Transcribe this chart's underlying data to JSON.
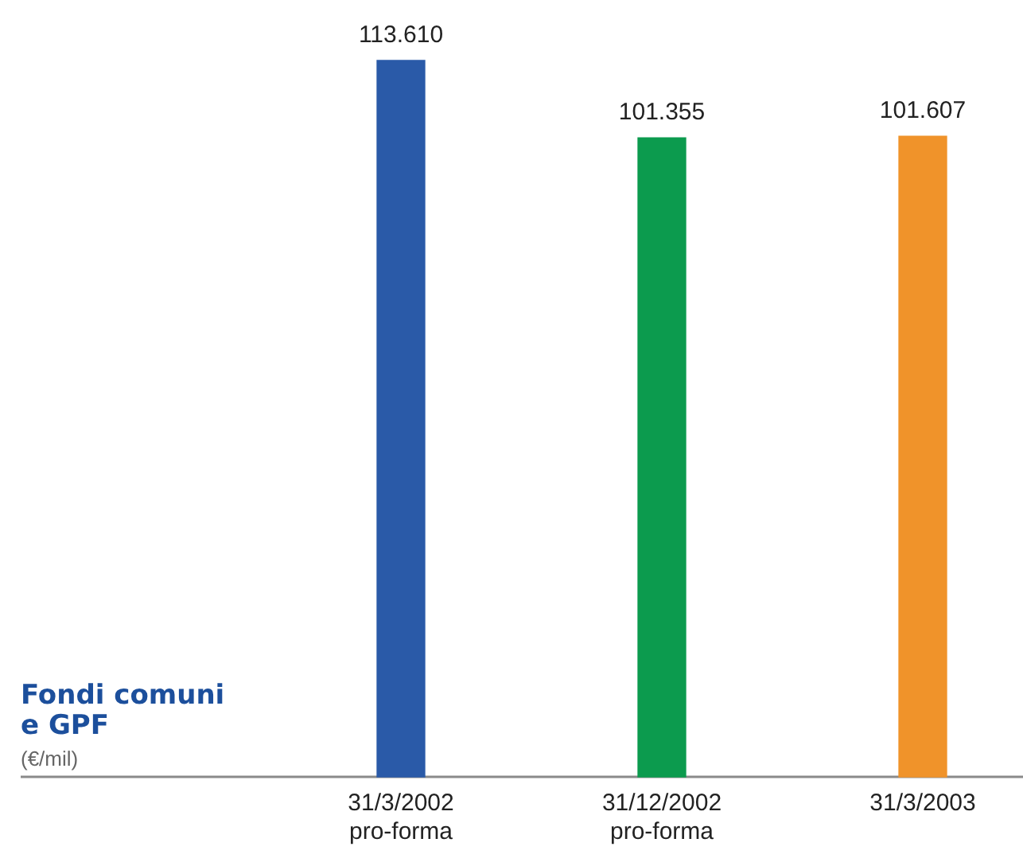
{
  "chart_data": {
    "type": "bar",
    "title": "Fondi comuni e GPF",
    "subtitle": "(€/mil)",
    "categories": [
      "31/3/2002 pro-forma",
      "31/12/2002 pro-forma",
      "31/3/2003"
    ],
    "values": [
      113610,
      101355,
      101607
    ],
    "colors": [
      "#2a5aa8",
      "#0c9b4e",
      "#f0932a"
    ],
    "value_labels": [
      "113.610",
      "101.355",
      "101.607"
    ],
    "grid": false,
    "legend": false,
    "tick_labels": "x"
  }
}
